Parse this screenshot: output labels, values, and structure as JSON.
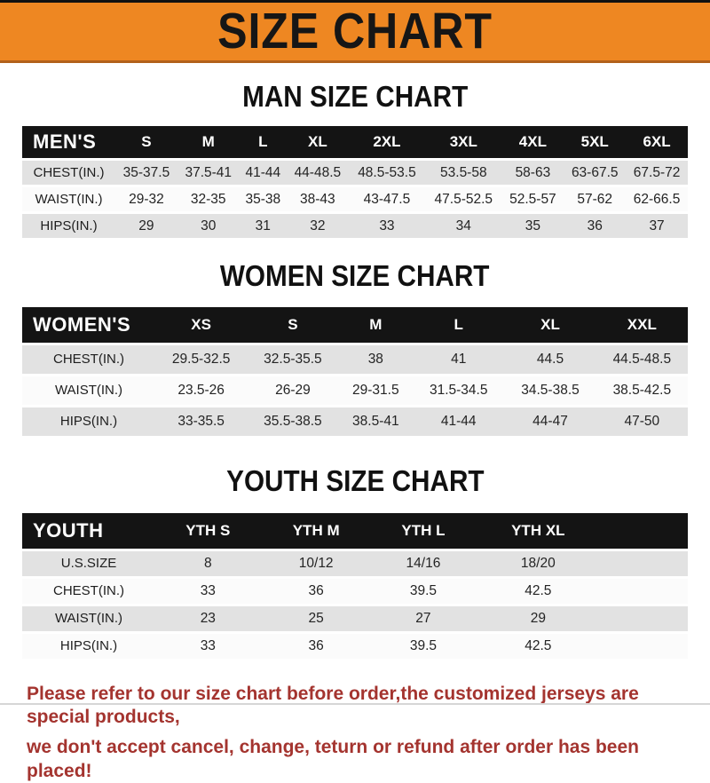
{
  "banner": {
    "title": "SIZE CHART",
    "bg_color": "#ee8722",
    "text_color": "#161616"
  },
  "sections": [
    {
      "id": "mens",
      "title": "MAN SIZE CHART",
      "header_label": "MEN'S",
      "columns": [
        "S",
        "M",
        "L",
        "XL",
        "2XL",
        "3XL",
        "4XL",
        "5XL",
        "6XL"
      ],
      "rows": [
        {
          "label": "CHEST(IN.)",
          "values": [
            "35-37.5",
            "37.5-41",
            "41-44",
            "44-48.5",
            "48.5-53.5",
            "53.5-58",
            "58-63",
            "63-67.5",
            "67.5-72"
          ]
        },
        {
          "label": "WAIST(IN.)",
          "values": [
            "29-32",
            "32-35",
            "35-38",
            "38-43",
            "43-47.5",
            "47.5-52.5",
            "52.5-57",
            "57-62",
            "62-66.5"
          ]
        },
        {
          "label": "HIPS(IN.)",
          "values": [
            "29",
            "30",
            "31",
            "32",
            "33",
            "34",
            "35",
            "36",
            "37"
          ]
        }
      ],
      "pad_columns": 0
    },
    {
      "id": "womens",
      "title": "WOMEN SIZE CHART",
      "header_label": "WOMEN'S",
      "columns": [
        "XS",
        "S",
        "M",
        "L",
        "XL",
        "XXL"
      ],
      "rows": [
        {
          "label": "CHEST(IN.)",
          "values": [
            "29.5-32.5",
            "32.5-35.5",
            "38",
            "41",
            "44.5",
            "44.5-48.5"
          ]
        },
        {
          "label": "WAIST(IN.)",
          "values": [
            "23.5-26",
            "26-29",
            "29-31.5",
            "31.5-34.5",
            "34.5-38.5",
            "38.5-42.5"
          ]
        },
        {
          "label": "HIPS(IN.)",
          "values": [
            "33-35.5",
            "35.5-38.5",
            "38.5-41",
            "41-44",
            "44-47",
            "47-50"
          ]
        }
      ],
      "pad_columns": 0
    },
    {
      "id": "youth",
      "title": "YOUTH SIZE CHART",
      "header_label": "YOUTH",
      "columns": [
        "YTH S",
        "YTH M",
        "YTH L",
        "YTH XL"
      ],
      "rows": [
        {
          "label": "U.S.SIZE",
          "values": [
            "8",
            "10/12",
            "14/16",
            "18/20"
          ]
        },
        {
          "label": "CHEST(IN.)",
          "values": [
            "33",
            "36",
            "39.5",
            "42.5"
          ]
        },
        {
          "label": "WAIST(IN.)",
          "values": [
            "23",
            "25",
            "27",
            "29"
          ]
        },
        {
          "label": "HIPS(IN.)",
          "values": [
            "33",
            "36",
            "39.5",
            "42.5"
          ]
        }
      ],
      "pad_columns": 1
    }
  ],
  "footer": {
    "lines": [
      "Please refer to our size chart before order,the customized jerseys are special products,",
      "we don't accept cancel, change, teturn or refund after order has been placed!"
    ],
    "text_color": "#a4342f"
  },
  "colors": {
    "banner_orange": "#ee8722",
    "table_header_black": "#141414",
    "row_stripe_gray": "#e2e2e2",
    "disclaimer_red": "#a4342f"
  }
}
